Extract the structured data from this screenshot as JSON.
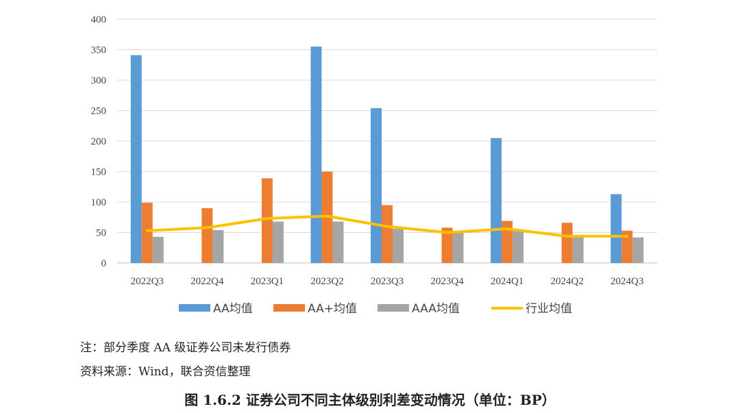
{
  "chart_data": {
    "type": "bar",
    "categories": [
      "2022Q3",
      "2022Q4",
      "2023Q1",
      "2023Q2",
      "2023Q3",
      "2023Q4",
      "2024Q1",
      "2024Q2",
      "2024Q3"
    ],
    "series": [
      {
        "name": "AA均值",
        "type": "bar",
        "color": "#5B9BD5",
        "values": [
          341,
          null,
          null,
          355,
          254,
          null,
          205,
          null,
          113
        ]
      },
      {
        "name": "AA+均值",
        "type": "bar",
        "color": "#ED7D31",
        "values": [
          99,
          90,
          139,
          150,
          95,
          58,
          69,
          66,
          53
        ]
      },
      {
        "name": "AAA均值",
        "type": "bar",
        "color": "#A5A5A5",
        "values": [
          43,
          54,
          68,
          68,
          56,
          52,
          53,
          43,
          42
        ]
      },
      {
        "name": "行业均值",
        "type": "line",
        "color": "#FFC000",
        "values": [
          53,
          58,
          73,
          77,
          60,
          50,
          56,
          44,
          44
        ]
      }
    ],
    "ylim": [
      0,
      400
    ],
    "yticks": [
      0,
      50,
      100,
      150,
      200,
      250,
      300,
      350,
      400
    ],
    "grid": true,
    "legend": "bottom"
  },
  "notes": {
    "note": "注：部分季度 AA 级证券公司未发行债券",
    "source": "资料来源：Wind，联合资信整理"
  },
  "caption": "图 1.6.2    证券公司不同主体级别利差变动情况（单位：BP）"
}
